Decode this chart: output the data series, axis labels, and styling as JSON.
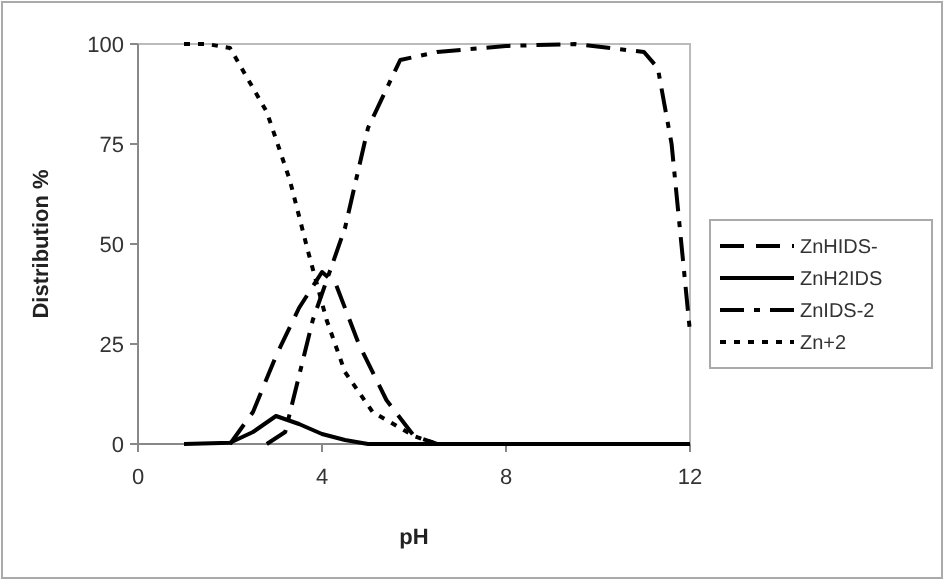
{
  "chart_data": {
    "type": "line",
    "xlabel": "pH",
    "ylabel": "Distribution %",
    "xlim": [
      0,
      12
    ],
    "ylim": [
      0,
      100
    ],
    "xticks": [
      0,
      4,
      8,
      12
    ],
    "yticks": [
      0,
      25,
      50,
      75,
      100
    ],
    "grid": false,
    "legend": "right",
    "marker": "none",
    "series": [
      {
        "name": "ZnHIDS-",
        "color": "#000000",
        "line_style": "dashed",
        "x": [
          2,
          2.5,
          3,
          3.5,
          4,
          4.3,
          4.8,
          5.4,
          6,
          6.5,
          8,
          10,
          12
        ],
        "values": [
          0,
          8,
          22,
          34,
          43,
          40,
          25,
          11,
          2,
          0,
          0,
          0,
          0
        ]
      },
      {
        "name": "ZnH2IDS",
        "color": "#000000",
        "line_style": "solid",
        "x": [
          1,
          2,
          2.5,
          3,
          3.5,
          4,
          4.5,
          5,
          6,
          8,
          10,
          12
        ],
        "values": [
          0,
          0.3,
          3,
          7,
          5,
          2.5,
          1,
          0,
          0,
          0,
          0,
          0
        ]
      },
      {
        "name": "ZnIDS-2",
        "color": "#000000",
        "line_style": "dashdot",
        "x": [
          2.8,
          3.2,
          3.8,
          4.5,
          5,
          5.7,
          6.5,
          8,
          9.5,
          11,
          11.3,
          11.6,
          12
        ],
        "values": [
          0,
          3,
          31,
          54,
          79,
          96,
          98,
          99.5,
          100,
          98,
          94,
          75,
          28
        ]
      },
      {
        "name": "Zn+2",
        "color": "#000000",
        "line_style": "dotted",
        "x": [
          1,
          1.5,
          2,
          2.8,
          3.3,
          3.7,
          4.1,
          4.5,
          5.1,
          6,
          6.5,
          8,
          10,
          12
        ],
        "values": [
          100,
          100,
          99,
          83,
          66,
          48,
          31,
          18,
          8,
          2,
          0,
          0,
          0,
          0
        ]
      }
    ]
  }
}
